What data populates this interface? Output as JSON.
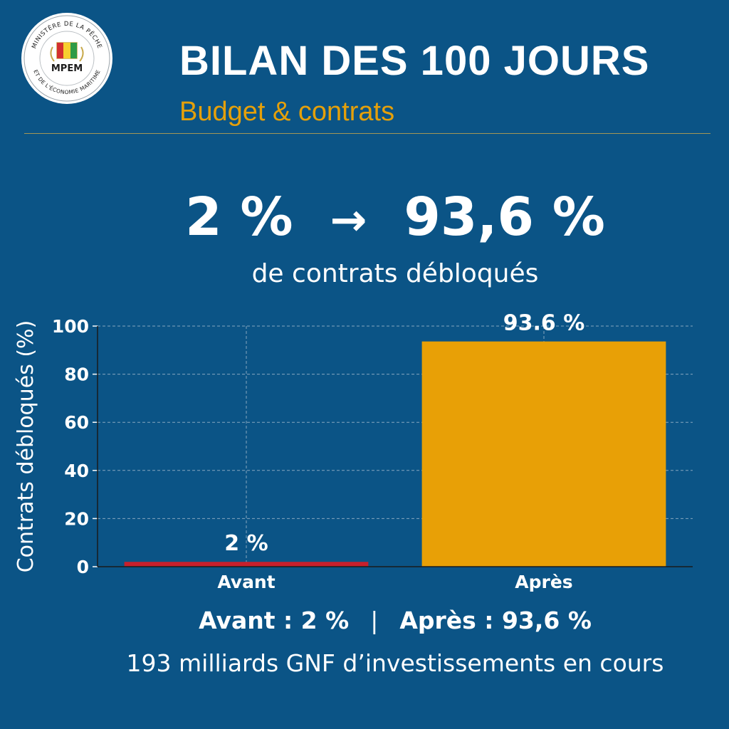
{
  "logo": {
    "ring_text_top": "MINISTÈRE DE LA PÊCHE",
    "ring_text_bottom": "ET DE L'ÉCONOMIE MARITIME",
    "abbr": "MPEM"
  },
  "header": {
    "title": "BILAN DES 100 JOURS",
    "subtitle": "Budget & contrats"
  },
  "headline": {
    "before": "2 %",
    "arrow": "→",
    "after": "93,6 %",
    "caption": "de contrats débloqués"
  },
  "summary": {
    "before": "Avant : 2 %",
    "separator": "|",
    "after": "Après : 93,6 %"
  },
  "footnote": "193 milliards GNF d’investissements en cours",
  "colors": {
    "background": "#0b5486",
    "accent": "#e5a00a",
    "before_bar": "#c8202c",
    "after_bar": "#e8a006"
  },
  "chart_data": {
    "type": "bar",
    "categories": [
      "Avant",
      "Après"
    ],
    "values": [
      2,
      93.6
    ],
    "data_labels": [
      "2 %",
      "93.6 %"
    ],
    "bar_colors": [
      "#c8202c",
      "#e8a006"
    ],
    "ylabel": "Contrats débloqués (%)",
    "xlabel": "",
    "ylim": [
      0,
      100
    ],
    "yticks": [
      0,
      20,
      40,
      60,
      80,
      100
    ],
    "grid": true
  }
}
